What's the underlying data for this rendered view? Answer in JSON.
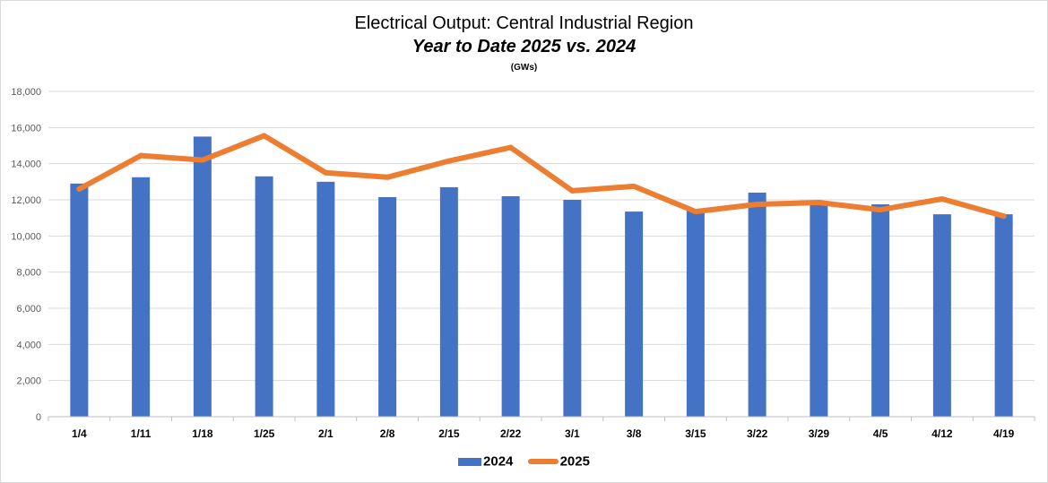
{
  "chart_data": {
    "type": "bar",
    "title": "Electrical Output:  Central Industrial Region",
    "subtitle": "Year to Date 2025 vs. 2024",
    "unit_label": "(GWs)",
    "xlabel": "",
    "ylabel": "",
    "ylim": [
      0,
      18000
    ],
    "y_ticks": [
      0,
      2000,
      4000,
      6000,
      8000,
      10000,
      12000,
      14000,
      16000,
      18000
    ],
    "y_tick_labels": [
      "0",
      "2,000",
      "4,000",
      "6,000",
      "8,000",
      "10,000",
      "12,000",
      "14,000",
      "16,000",
      "18,000"
    ],
    "grid": true,
    "legend_position": "bottom",
    "categories": [
      "1/4",
      "1/11",
      "1/18",
      "1/25",
      "2/1",
      "2/8",
      "2/15",
      "2/22",
      "3/1",
      "3/8",
      "3/15",
      "3/22",
      "3/29",
      "4/5",
      "4/12",
      "4/19"
    ],
    "series": [
      {
        "name": "2024",
        "kind": "bar",
        "color": "#4472c4",
        "values": [
          12900,
          13250,
          15500,
          13300,
          13000,
          12150,
          12700,
          12200,
          12000,
          11350,
          11400,
          12400,
          11800,
          11750,
          11200,
          11200
        ]
      },
      {
        "name": "2025",
        "kind": "line",
        "color": "#ed7d31",
        "values": [
          12600,
          14450,
          14200,
          15550,
          13500,
          13250,
          14150,
          14900,
          12500,
          12750,
          11350,
          11750,
          11850,
          11450,
          12050,
          11100
        ]
      }
    ]
  }
}
